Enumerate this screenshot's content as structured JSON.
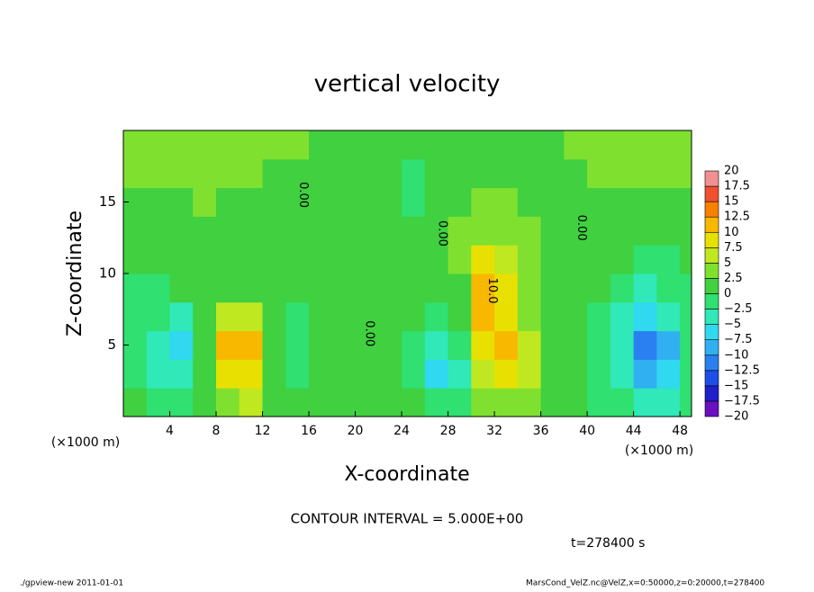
{
  "chart_data": {
    "type": "contour",
    "title": "vertical velocity",
    "x_label": "X-coordinate",
    "y_label": "Z-coordinate",
    "x_unit": "(×1000 m)",
    "subtitle": "CONTOUR INTERVAL = 5.000E+00",
    "time_label": "t=278400 s",
    "footer_left": "./gpview-new  2011-01-01",
    "footer_right": "MarsCond_VelZ.nc@VelZ,x=0:50000,z=0:20000,t=278400",
    "xlim": [
      0,
      49
    ],
    "ylim": [
      0,
      20
    ],
    "xticks": [
      4,
      8,
      12,
      16,
      20,
      24,
      28,
      32,
      36,
      40,
      44,
      48
    ],
    "yticks": [
      5,
      10,
      15
    ],
    "x": [
      1,
      3,
      5,
      7,
      9,
      11,
      13,
      15,
      17,
      19,
      21,
      23,
      25,
      27,
      29,
      31,
      33,
      35,
      37,
      39,
      41,
      43,
      45,
      47,
      49
    ],
    "y": [
      1,
      3,
      5,
      7,
      9,
      11,
      13,
      15,
      17,
      19
    ],
    "values": [
      [
        0,
        -1,
        -2,
        0,
        4,
        5,
        1,
        0,
        1,
        1,
        1,
        1,
        0,
        -2,
        -1,
        3,
        4,
        3,
        1,
        0,
        -1,
        -2,
        -4,
        -3,
        -1
      ],
      [
        -1,
        -3,
        -5,
        0,
        8,
        9,
        2,
        -1,
        1,
        2,
        2,
        1,
        -1,
        -6,
        -4,
        6,
        8,
        6,
        2,
        0,
        -1,
        -4,
        -9,
        -7,
        -1
      ],
      [
        -2,
        -4,
        -6,
        0,
        10,
        11,
        2,
        -2,
        0,
        1,
        1,
        1,
        -1,
        -4,
        -2,
        9,
        11,
        7,
        2,
        0,
        -1,
        -5,
        -11,
        -8,
        -2
      ],
      [
        -1,
        -2,
        -3,
        1,
        6,
        6,
        1,
        -1,
        1,
        1,
        0,
        1,
        0,
        -1,
        1,
        11,
        9,
        4,
        1,
        0,
        -1,
        -4,
        -6,
        -4,
        -1
      ],
      [
        -1,
        -1,
        0,
        1,
        2,
        2,
        1,
        0,
        2,
        2,
        1,
        2,
        1,
        0,
        2,
        11,
        8,
        4,
        1,
        1,
        0,
        -1,
        -3,
        -2,
        -1
      ],
      [
        0,
        0,
        1,
        1,
        1,
        1,
        1,
        1,
        2,
        2,
        2,
        1,
        1,
        2,
        3,
        8,
        6,
        3,
        2,
        2,
        1,
        0,
        -1,
        -1,
        0
      ],
      [
        1,
        1,
        2,
        2,
        1,
        0,
        2,
        2,
        2,
        2,
        2,
        1,
        0,
        2,
        3,
        4,
        4,
        3,
        2,
        2,
        2,
        1,
        1,
        1,
        1
      ],
      [
        2,
        2,
        2,
        3,
        2,
        2,
        2,
        1,
        0,
        1,
        2,
        1,
        -1,
        1,
        2,
        3,
        3,
        2,
        2,
        2,
        2,
        2,
        2,
        2,
        2
      ],
      [
        3,
        3,
        3,
        3,
        3,
        3,
        2,
        1,
        0,
        0,
        1,
        1,
        -1,
        1,
        2,
        2,
        2,
        2,
        2,
        2,
        3,
        3,
        3,
        3,
        3
      ],
      [
        3,
        3,
        3,
        3,
        3,
        3,
        3,
        3,
        2,
        2,
        1,
        1,
        1,
        2,
        2,
        2,
        2,
        2,
        2,
        3,
        3,
        3,
        3,
        3,
        3
      ]
    ],
    "levels": [
      {
        "value": -20,
        "label": "−20"
      },
      {
        "value": -17.5,
        "label": "−17.5"
      },
      {
        "value": -15,
        "label": "−15"
      },
      {
        "value": -12.5,
        "label": "−12.5"
      },
      {
        "value": -10,
        "label": "−10"
      },
      {
        "value": -7.5,
        "label": "−7.5"
      },
      {
        "value": -5,
        "label": "−5"
      },
      {
        "value": -2.5,
        "label": "−2.5"
      },
      0,
      2.5,
      5,
      7.5,
      10,
      12.5,
      15,
      17.5,
      20
    ],
    "colors": [
      "#6a10c0",
      "#2020c8",
      "#1e4ee8",
      "#2a80f0",
      "#30b0f0",
      "#30d8f0",
      "#30e8b8",
      "#30e070",
      "#40d040",
      "#80e030",
      "#c0e820",
      "#e8e000",
      "#f8b800",
      "#f88000",
      "#f05030",
      "#f09090"
    ],
    "contour_labels": [
      {
        "text": "0.00",
        "x": 15.5,
        "y": 15.5
      },
      {
        "text": "0.00",
        "x": 27.5,
        "y": 12.8
      },
      {
        "text": "0.00",
        "x": 39.5,
        "y": 13.2
      },
      {
        "text": "0.00",
        "x": 21.2,
        "y": 5.8
      },
      {
        "text": "10.0",
        "x": 31.8,
        "y": 8.8
      }
    ]
  }
}
